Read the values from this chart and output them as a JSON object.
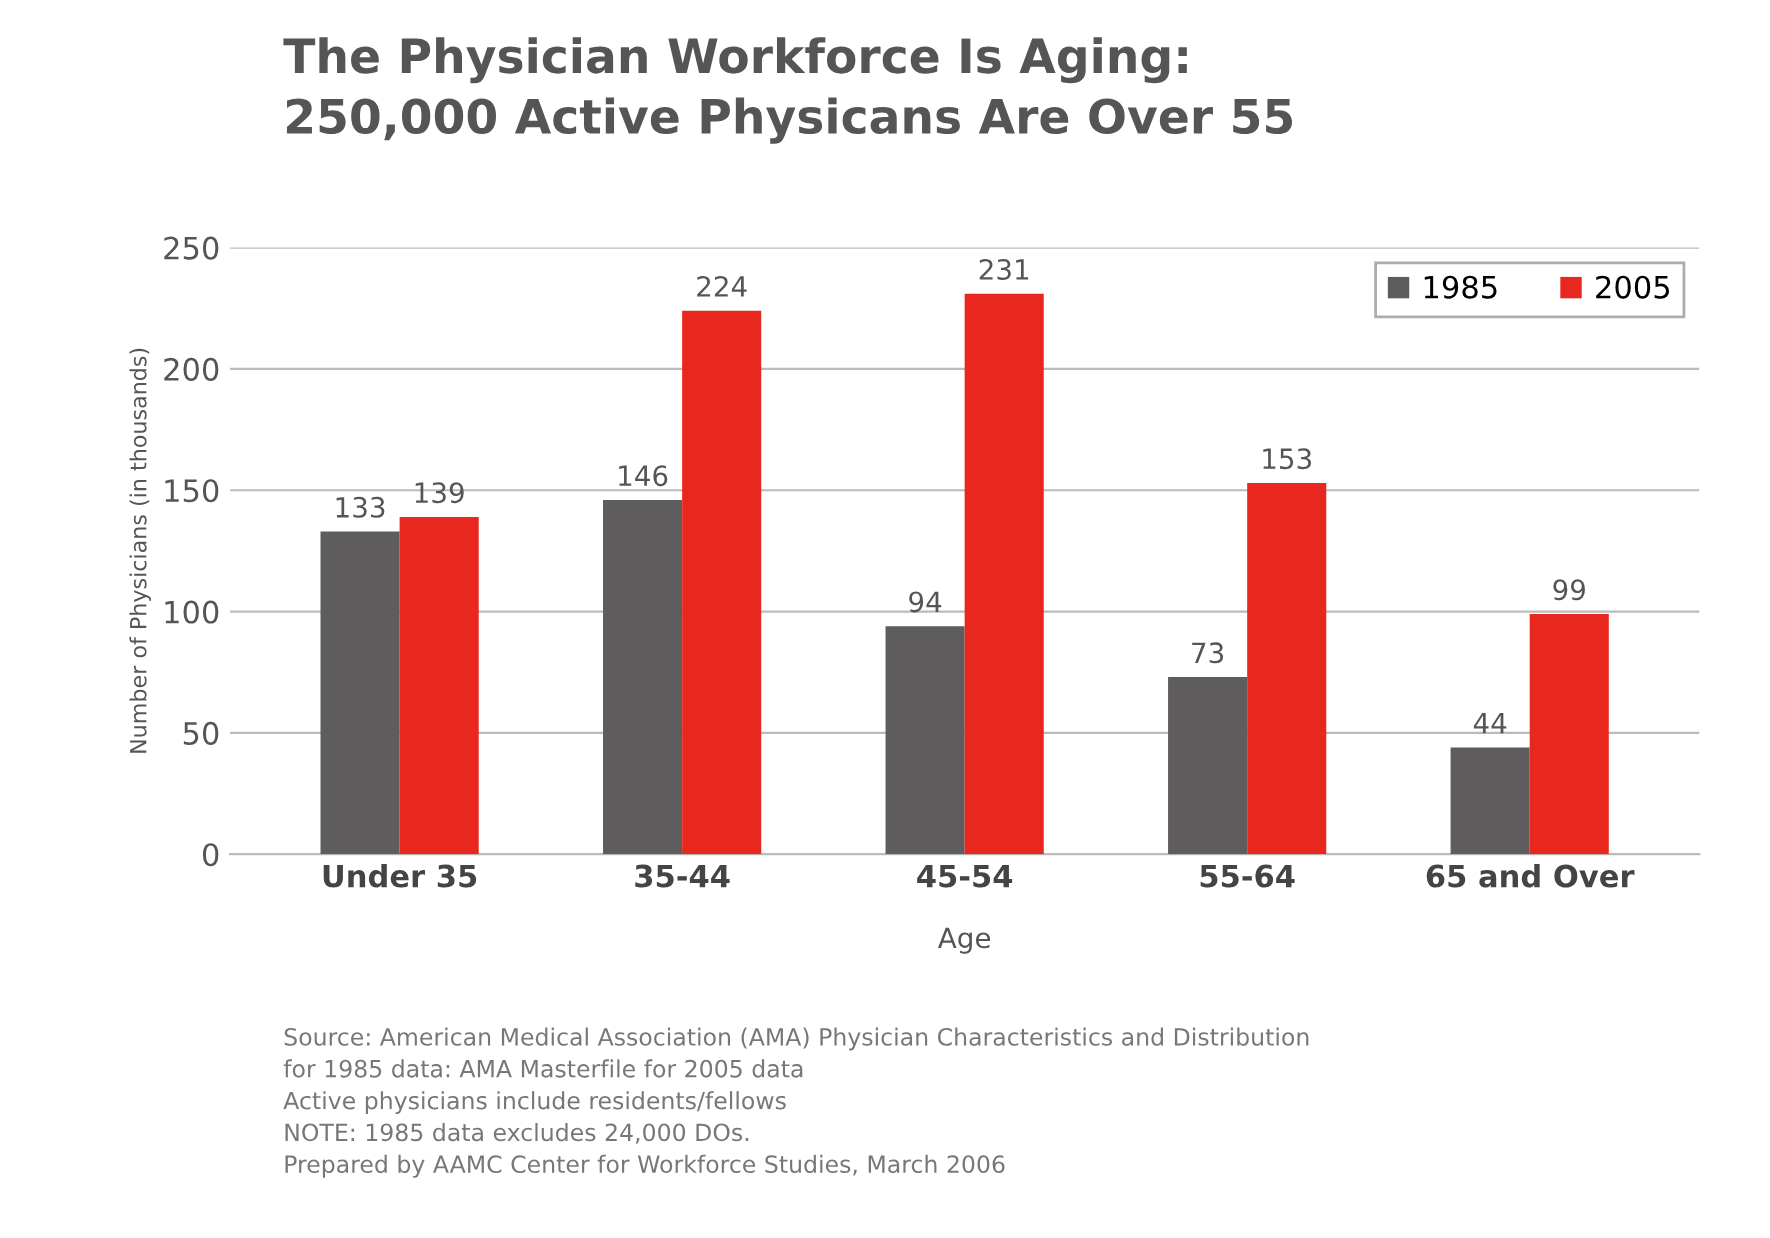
{
  "chart_data": {
    "type": "bar",
    "title": "The Physician Workforce Is Aging:\n250,000 Active Physicans Are Over 55",
    "xlabel": "Age",
    "ylabel": "Number of Physicians (in thousands)",
    "categories": [
      "Under 35",
      "35-44",
      "45-54",
      "55-64",
      "65 and Over"
    ],
    "series": [
      {
        "name": "1985",
        "color": "#5e5c5c",
        "values": [
          133,
          146,
          94,
          73,
          44
        ]
      },
      {
        "name": "2005",
        "color": "#e8281e",
        "values": [
          139,
          224,
          231,
          153,
          99
        ]
      }
    ],
    "ylim": [
      0,
      250
    ],
    "yticks": [
      0,
      50,
      100,
      150,
      200,
      250
    ],
    "grid": "y",
    "legend": "top right",
    "data_labels": true,
    "annotations": [
      "Source: American Medical Association (AMA) Physician Characteristics and Distribution\nfor 1985 data: AMA Masterfile for 2005 data\nActive physicians include residents/fellows\nNOTE: 1985 data excludes 24,000 DOs.\nPrepared by AAMC Center for Workforce Studies, March 2006"
    ]
  }
}
